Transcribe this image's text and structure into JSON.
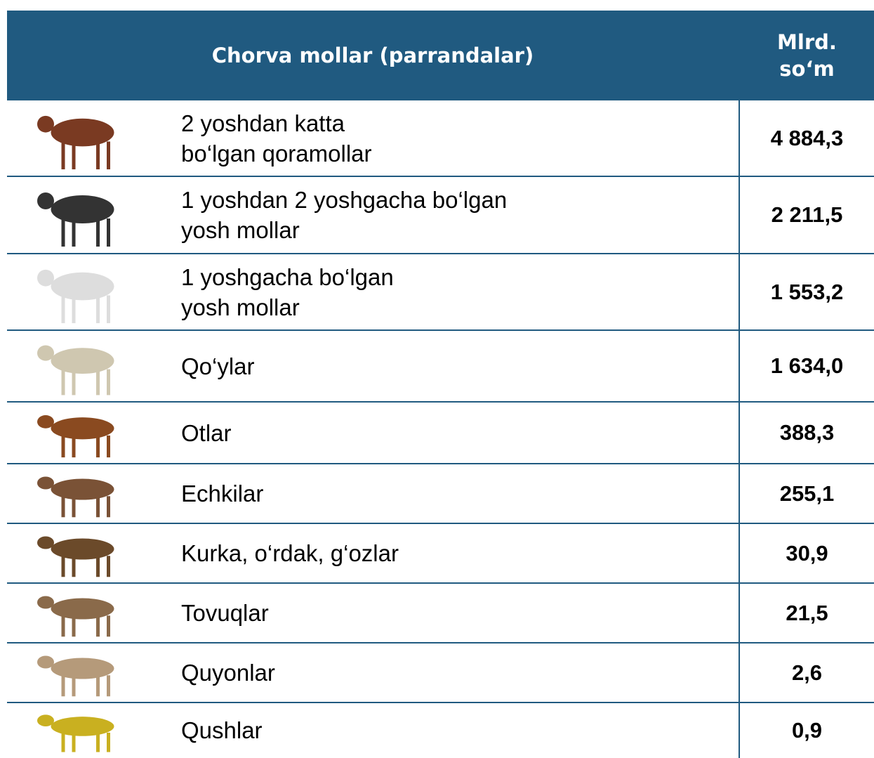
{
  "table": {
    "header": [
      "Chorva mollar (parrandalar)",
      [
        "Mlrd.",
        "so‘m"
      ]
    ],
    "rows": [
      {
        "label": [
          "2 yoshdan katta",
          "bo‘lgan qoramollar"
        ],
        "value": "4 884,3"
      },
      {
        "label": [
          "1 yoshdan  2 yoshgacha bo‘lgan",
          "yosh mollar"
        ],
        "value": "2 211,5"
      },
      {
        "label": [
          "1 yoshgacha bo‘lgan",
          "yosh mollar"
        ],
        "value": "1 553,2"
      },
      {
        "label": [
          "Qo‘ylar"
        ],
        "value": "1 634,0"
      },
      {
        "label": [
          "Otlar"
        ],
        "value": "388,3"
      },
      {
        "label": [
          "Echkilar"
        ],
        "value": "255,1"
      },
      {
        "label": [
          "Kurka, o‘rdak, g‘ozlar"
        ],
        "value": "30,9"
      },
      {
        "label": [
          "Tovuqlar"
        ],
        "value": "21,5"
      },
      {
        "label": [
          "Quyonlar"
        ],
        "value": "2,6"
      },
      {
        "label": [
          "Qushlar"
        ],
        "value": "0,9"
      }
    ]
  }
}
